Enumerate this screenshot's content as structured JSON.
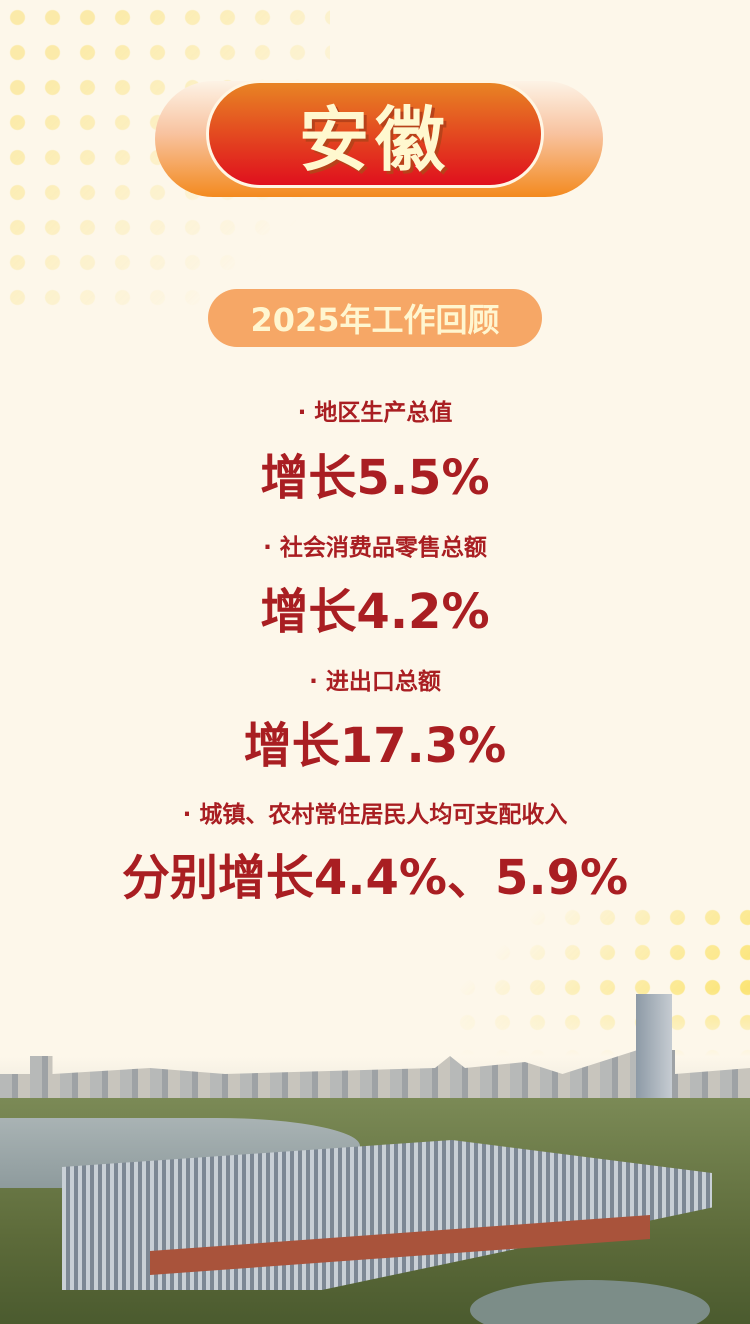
{
  "header": {
    "title": "安徽",
    "subtitle": "2025年工作回顾"
  },
  "stats": [
    {
      "label": "· 地区生产总值",
      "value": "增长5.5%"
    },
    {
      "label": "· 社会消费品零售总额",
      "value": "增长4.2%"
    },
    {
      "label": "· 进出口总额",
      "value": "增长17.3%"
    },
    {
      "label": "· 城镇、农村常住居民人均可支配收入",
      "value": "分别增长4.4%、5.9%"
    }
  ],
  "colors": {
    "accent": "#a91e22",
    "title_red": "#e0101e",
    "orange": "#f38a1f",
    "background": "#fdf7ea"
  }
}
